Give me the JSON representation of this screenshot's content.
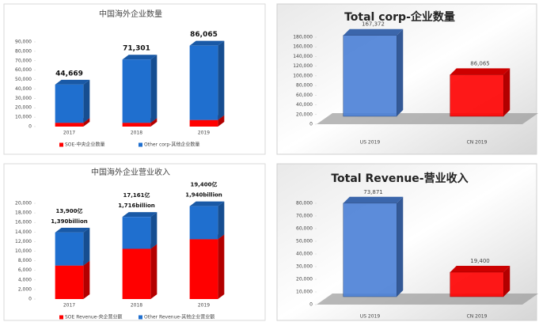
{
  "chart_data": [
    {
      "type": "stacked_bar",
      "title": "中国海外企业数量",
      "categories": [
        "2017",
        "2018",
        "2019"
      ],
      "series": [
        {
          "name": "SOE-中央企业数量",
          "color": "#ff0000",
          "values": [
            4000,
            4000,
            7000
          ]
        },
        {
          "name": "Other corp-其他企业数量",
          "color": "#1f6fcf",
          "values": [
            40669,
            67301,
            79065
          ]
        }
      ],
      "total_labels": [
        [
          "44,669"
        ],
        [
          "71,301"
        ],
        [
          "86,065"
        ]
      ],
      "ylim": [
        0,
        90000
      ],
      "yticks": [
        0,
        {
          "value": 10000,
          "label": "10,000"
        },
        {
          "value": 20000,
          "label": "20,000"
        },
        {
          "value": 30000,
          "label": "30,000"
        },
        {
          "value": 40000,
          "label": "40,000"
        },
        {
          "value": 50000,
          "label": "50,000"
        },
        {
          "value": 60000,
          "label": "60,000"
        },
        {
          "value": 70000,
          "label": "70,000"
        },
        {
          "value": 80000,
          "label": "80,000"
        },
        {
          "value": 90000,
          "label": "90,000"
        }
      ]
    },
    {
      "type": "bar",
      "title": "Total corp-企业数量",
      "categories": [
        "US 2019",
        "CN 2019"
      ],
      "values": [
        167372,
        86065
      ],
      "value_labels": [
        "167,372",
        "86,065"
      ],
      "colors": [
        "#4a7fd6",
        "#ff0000"
      ],
      "ylim": [
        0,
        180000
      ],
      "yticks": [
        0,
        {
          "value": 20000,
          "label": "20,000"
        },
        {
          "value": 40000,
          "label": "40,000"
        },
        {
          "value": 60000,
          "label": "60,000"
        },
        {
          "value": 80000,
          "label": "80,000"
        },
        {
          "value": 100000,
          "label": "100,000"
        },
        {
          "value": 120000,
          "label": "120,000"
        },
        {
          "value": 140000,
          "label": "140,000"
        },
        {
          "value": 160000,
          "label": "160,000"
        },
        {
          "value": 180000,
          "label": "180,000"
        }
      ]
    },
    {
      "type": "stacked_bar",
      "title": "中国海外企业营业收入",
      "categories": [
        "2017",
        "2018",
        "2019"
      ],
      "series": [
        {
          "name": "SOE Revenue-央企营业额",
          "color": "#ff0000",
          "values": [
            7000,
            10500,
            12500
          ]
        },
        {
          "name": "Other Revenue-其他企业营业额",
          "color": "#1f6fcf",
          "values": [
            6900,
            6661,
            6900
          ]
        }
      ],
      "total_labels": [
        [
          "13,900亿",
          "1,390billion"
        ],
        [
          "17,161亿",
          "1,716billion"
        ],
        [
          "19,400亿",
          "1,940billion"
        ]
      ],
      "ylim": [
        0,
        20000
      ],
      "yticks": [
        0,
        {
          "value": 2000,
          "label": "2,000"
        },
        {
          "value": 4000,
          "label": "4,000"
        },
        {
          "value": 6000,
          "label": "6,000"
        },
        {
          "value": 8000,
          "label": "8,000"
        },
        {
          "value": 10000,
          "label": "10,000"
        },
        {
          "value": 12000,
          "label": "12,000"
        },
        {
          "value": 14000,
          "label": "14,000"
        },
        {
          "value": 16000,
          "label": "16,000"
        },
        {
          "value": 18000,
          "label": "18,000"
        },
        {
          "value": 20000,
          "label": "20,000"
        }
      ]
    },
    {
      "type": "bar",
      "title": "Total Revenue-营业收入",
      "categories": [
        "US 2019",
        "CN 2019"
      ],
      "values": [
        73871,
        19400
      ],
      "value_labels": [
        "73,871",
        "19,400"
      ],
      "colors": [
        "#4a7fd6",
        "#ff0000"
      ],
      "ylim": [
        0,
        80000
      ],
      "yticks": [
        0,
        {
          "value": 10000,
          "label": "10,000"
        },
        {
          "value": 20000,
          "label": "20,000"
        },
        {
          "value": 30000,
          "label": "30,000"
        },
        {
          "value": 40000,
          "label": "40,000"
        },
        {
          "value": 50000,
          "label": "50,000"
        },
        {
          "value": 60000,
          "label": "60,000"
        },
        {
          "value": 70000,
          "label": "70,000"
        },
        {
          "value": 80000,
          "label": "80,000"
        }
      ]
    }
  ]
}
